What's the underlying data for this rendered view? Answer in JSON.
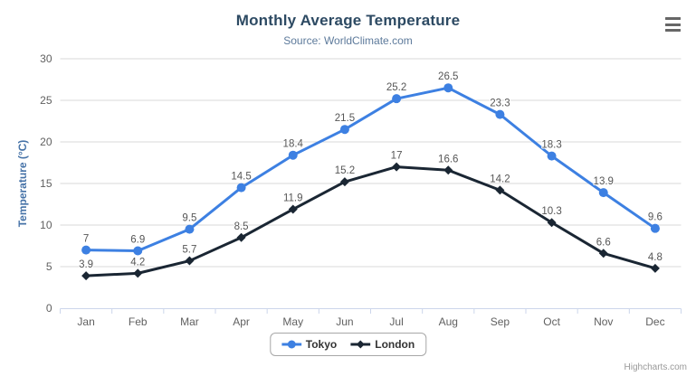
{
  "header": {
    "title": "Monthly Average Temperature",
    "subtitle": "Source: WorldClimate.com"
  },
  "chart_data": {
    "type": "line",
    "title": "Monthly Average Temperature",
    "subtitle": "Source: WorldClimate.com",
    "categories": [
      "Jan",
      "Feb",
      "Mar",
      "Apr",
      "May",
      "Jun",
      "Jul",
      "Aug",
      "Sep",
      "Oct",
      "Nov",
      "Dec"
    ],
    "series": [
      {
        "name": "Tokyo",
        "marker": "circle",
        "color": "#3d80e2",
        "values": [
          7,
          6.9,
          9.5,
          14.5,
          18.4,
          21.5,
          25.2,
          26.5,
          23.3,
          18.3,
          13.9,
          9.6
        ]
      },
      {
        "name": "London",
        "marker": "diamond",
        "color": "#1a2633",
        "values": [
          3.9,
          4.2,
          5.7,
          8.5,
          11.9,
          15.2,
          17,
          16.6,
          14.2,
          10.3,
          6.6,
          4.8
        ]
      }
    ],
    "xlabel": "",
    "ylabel": "Temperature (°C)",
    "ylim": [
      0,
      30
    ],
    "yticks": [
      0,
      5,
      10,
      15,
      20,
      25,
      30
    ],
    "grid": true,
    "data_labels": true,
    "legend_position": "bottom"
  },
  "colors": {
    "grid_line": "#d9d9d9",
    "axis_line": "#ccd6eb",
    "axis_label": "#606060",
    "y_axis_title": "#4572a7",
    "title": "#2d4a63",
    "subtitle": "#5d7a9b",
    "data_label": "#565656",
    "legend_border": "#a7a7a7",
    "credits": "#999999",
    "menu_icon": "#666666"
  },
  "credits": "Highcharts.com"
}
